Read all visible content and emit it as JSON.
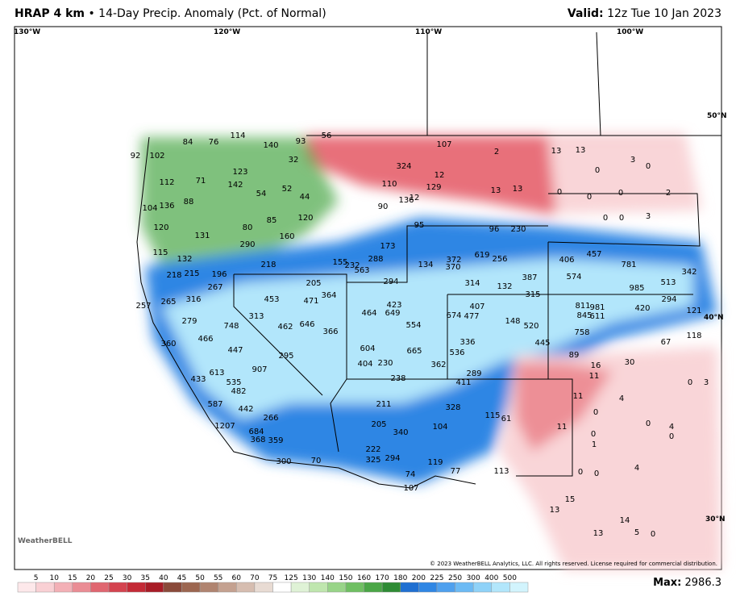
{
  "header": {
    "model": "HRAP 4 km",
    "separator": "•",
    "title": "14-Day Precip. Anomaly (Pct. of Normal)",
    "valid_label": "Valid:",
    "valid_time": "12z Tue 10 Jan 2023"
  },
  "map": {
    "longitude_labels": [
      "130°W",
      "120°W",
      "110°W",
      "100°W"
    ],
    "latitude_labels": [
      "50°N",
      "40°N",
      "30°N"
    ],
    "values": [
      114,
      140,
      93,
      56,
      84,
      76,
      92,
      102,
      32,
      123,
      142,
      112,
      71,
      52,
      54,
      44,
      88,
      136,
      104,
      120,
      85,
      80,
      120,
      131,
      290,
      160,
      115,
      132,
      218,
      218,
      215,
      196,
      267,
      453,
      471,
      205,
      364,
      257,
      265,
      316,
      313,
      279,
      748,
      462,
      646,
      366,
      466,
      447,
      360,
      907,
      295,
      613,
      535,
      482,
      433,
      587,
      442,
      266,
      1207,
      684,
      368,
      359,
      300,
      70,
      155,
      232,
      563,
      288,
      173,
      294,
      464,
      423,
      649,
      554,
      604,
      404,
      230,
      665,
      362,
      238,
      211,
      205,
      340,
      222,
      325,
      294,
      104,
      119,
      74,
      107,
      328,
      95,
      96,
      230,
      619,
      256,
      372,
      370,
      134,
      314,
      132,
      387,
      315,
      674,
      407,
      477,
      148,
      520,
      336,
      536,
      445,
      289,
      411,
      115,
      61,
      77,
      113,
      406,
      457,
      781,
      574,
      985,
      513,
      342,
      294,
      420,
      811,
      981,
      845,
      611,
      758,
      121,
      118,
      13,
      13,
      3,
      0,
      0,
      0,
      0,
      0,
      2,
      0,
      0,
      3,
      13,
      13,
      12,
      12,
      110,
      90,
      129,
      136,
      324,
      107,
      2,
      11,
      4,
      0,
      0,
      1,
      0,
      0,
      4,
      13,
      15,
      14,
      13,
      5,
      0,
      11,
      16,
      11,
      89,
      30,
      67,
      3,
      0,
      0,
      4,
      0
    ],
    "logo": "WeatherBELL",
    "copyright": "© 2023 WeatherBELL Analytics, LLC. All rights reserved. License required for commercial distribution."
  },
  "legend": {
    "ticks": [
      5,
      10,
      15,
      20,
      25,
      30,
      35,
      40,
      45,
      50,
      55,
      60,
      70,
      75,
      125,
      130,
      140,
      150,
      160,
      170,
      180,
      200,
      225,
      250,
      300,
      400,
      500
    ],
    "colors": [
      "#fde8ea",
      "#f9d0d4",
      "#f3b0b6",
      "#ea8c94",
      "#e06670",
      "#d4434f",
      "#c42a36",
      "#a81c26",
      "#8a4a3a",
      "#9c6650",
      "#b08470",
      "#c4a190",
      "#d6bdb0",
      "#e8dbd3",
      "#ffffff",
      "#dff2d6",
      "#bfe6ae",
      "#98d488",
      "#6fbf62",
      "#4aa646",
      "#2e8b34",
      "#1f6fd1",
      "#2f86e4",
      "#4fa0ee",
      "#6cbaf4",
      "#8fd2f8",
      "#b2e6fb",
      "#d2f4fd"
    ]
  },
  "footer": {
    "max_label": "Max:",
    "max_value": "2986.3"
  }
}
